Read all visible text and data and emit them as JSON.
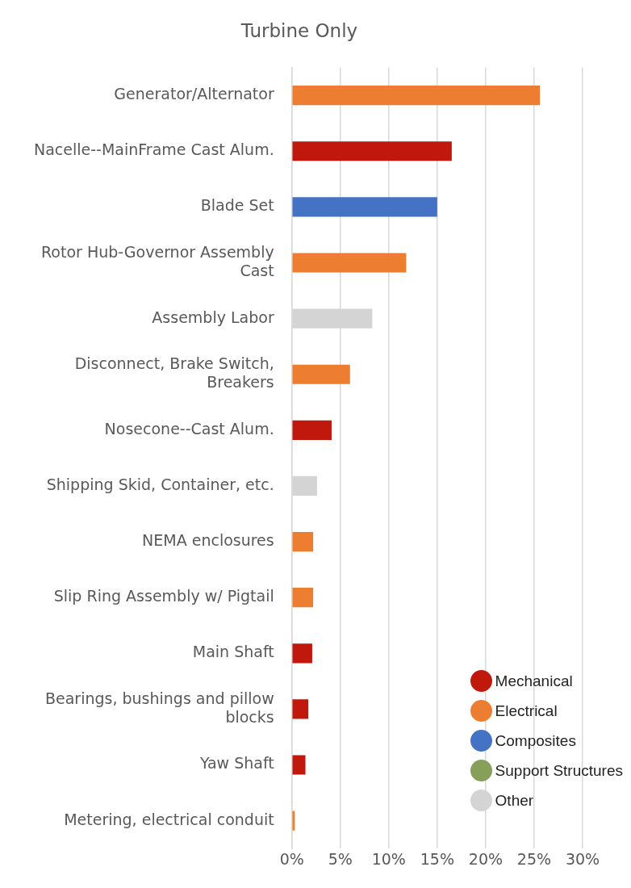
{
  "chart_data": {
    "type": "bar",
    "orientation": "horizontal",
    "stacked": true,
    "title": "Turbine Only",
    "categories": [
      "Generator/Alternator",
      "Nacelle--MainFrame Cast Alum.",
      "Blade Set",
      "Rotor Hub-Governor Assembly Cast",
      "Assembly Labor",
      "Disconnect, Brake Switch, Breakers",
      "Nosecone--Cast Alum.",
      "Shipping Skid, Container, etc.",
      "NEMA enclosures",
      "Slip Ring Assembly w/ Pigtail",
      "Main Shaft",
      "Bearings, bushings and pillow blocks",
      "Yaw Shaft",
      "Metering, electrical conduit"
    ],
    "series": [
      {
        "name": "Mechanical",
        "color": "#c0180c",
        "values": [
          null,
          16.5,
          null,
          null,
          null,
          null,
          4.1,
          null,
          null,
          null,
          2.1,
          1.7,
          1.4,
          null
        ]
      },
      {
        "name": "Electrical",
        "color": "#ed7d31",
        "values": [
          25.6,
          null,
          null,
          11.8,
          null,
          6.0,
          null,
          null,
          2.2,
          2.2,
          null,
          null,
          null,
          0.3
        ]
      },
      {
        "name": "Composites",
        "color": "#4472c4",
        "values": [
          null,
          null,
          15.0,
          null,
          null,
          null,
          null,
          null,
          null,
          null,
          null,
          null,
          null,
          null
        ]
      },
      {
        "name": "Support Structures",
        "color": "#86a05a",
        "values": [
          null,
          null,
          null,
          null,
          null,
          null,
          null,
          null,
          null,
          null,
          null,
          null,
          null,
          null
        ]
      },
      {
        "name": "Other",
        "color": "#d4d4d4",
        "values": [
          null,
          null,
          null,
          null,
          8.3,
          null,
          null,
          2.6,
          null,
          null,
          null,
          null,
          null,
          null
        ]
      }
    ],
    "xlim": [
      0,
      30
    ],
    "xticks": [
      {
        "value": 0,
        "label": "0%"
      },
      {
        "value": 5,
        "label": "5%"
      },
      {
        "value": 10,
        "label": "10%"
      },
      {
        "value": 15,
        "label": "15%"
      },
      {
        "value": 20,
        "label": "20%"
      },
      {
        "value": 25,
        "label": "25%"
      },
      {
        "value": 30,
        "label": "30%"
      }
    ],
    "grid": "x",
    "legend": "bottom right"
  }
}
